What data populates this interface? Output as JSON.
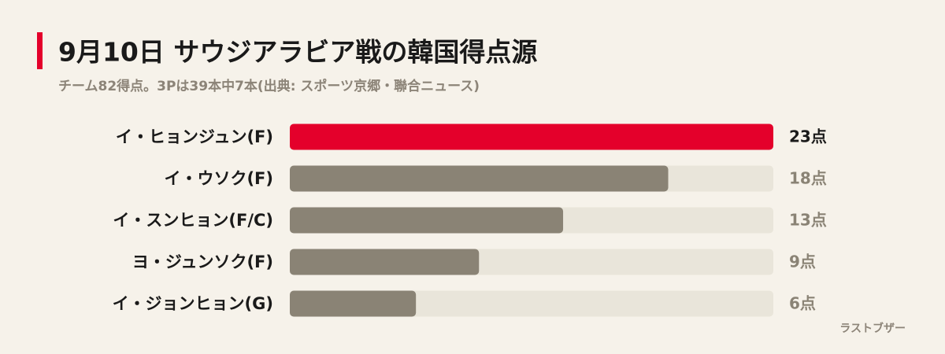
{
  "chart_data": {
    "type": "bar",
    "orientation": "horizontal",
    "title": "9月10日 サウジアラビア戦の韓国得点源",
    "subtitle": "チーム82得点。3Pは39本中7本(出典: スポーツ京郷・聯合ニュース)",
    "categories": [
      "イ・ヒョンジュン(F)",
      "イ・ウソク(F)",
      "イ・スンヒョン(F/C)",
      "ヨ・ジュンソク(F)",
      "イ・ジョンヒョン(G)"
    ],
    "values": [
      23,
      18,
      13,
      9,
      6
    ],
    "value_labels": [
      "23点",
      "18点",
      "13点",
      "9点",
      "6点"
    ],
    "colors": [
      "#e4002b",
      "#8a8375",
      "#8a8375",
      "#8a8375",
      "#8a8375"
    ],
    "track_color": "#e9e5da",
    "xlim": [
      0,
      23
    ],
    "source": "ラストブザー"
  }
}
